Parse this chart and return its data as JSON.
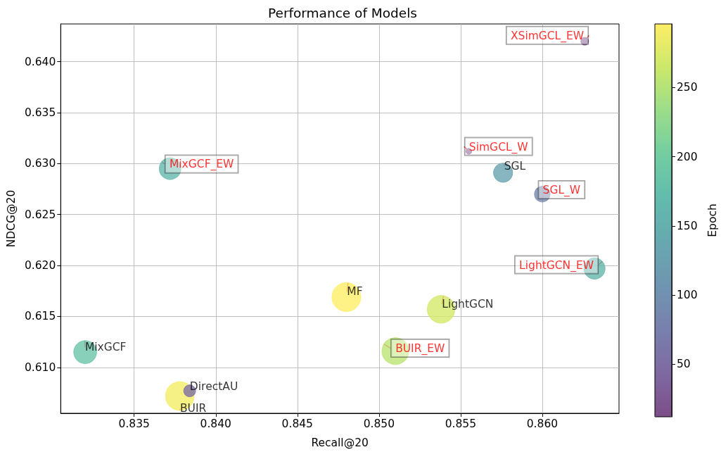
{
  "chart_data": {
    "type": "bubble",
    "title": "Performance of Models",
    "xlabel": "Recall@20",
    "ylabel": "NDCG@20",
    "clabel": "Epoch",
    "xlim": [
      0.8305,
      0.8647
    ],
    "xticks": [
      0.835,
      {
        "value": 0.84,
        "label": "0.840"
      },
      0.845,
      {
        "value": 0.85,
        "label": "0.850"
      },
      0.855,
      {
        "value": 0.86,
        "label": "0.860"
      }
    ],
    "ylim": [
      0.6055,
      0.6437
    ],
    "yticks": [
      {
        "value": 0.61,
        "label": "0.610"
      },
      0.615,
      {
        "value": 0.62,
        "label": "0.620"
      },
      0.625,
      {
        "value": 0.63,
        "label": "0.630"
      },
      0.635,
      {
        "value": 0.64,
        "label": "0.640"
      }
    ],
    "clim": [
      12,
      296
    ],
    "cticks": [
      50,
      100,
      150,
      200,
      250
    ],
    "grid": true,
    "marker": "circle",
    "series": [
      {
        "x": [
          0.848,
          0.8378,
          0.8538,
          0.832,
          0.8576,
          0.8384
        ],
        "values": [
          0.6169,
          0.6072,
          0.6157,
          0.6115,
          0.6291,
          0.6077
        ],
        "sizes": [
          1,
          0.98,
          0.91,
          0.63,
          0.44,
          0.17
        ],
        "cvalues": [
          296,
          290,
          270,
          185,
          130,
          50
        ],
        "colors": [
          "#feee66",
          "#f4ed67",
          "#d4e96a",
          "#6ac4a7",
          "#69a3b0",
          "#7e6da3"
        ]
      },
      {
        "x": [
          0.851,
          0.8372,
          0.8632,
          0.86,
          0.8626,
          0.8555
        ],
        "values": [
          0.6116,
          0.6295,
          0.6197,
          0.627,
          0.642,
          0.6312
        ],
        "sizes": [
          0.86,
          0.56,
          0.54,
          0.29,
          0.07,
          0.04
        ],
        "cvalues": [
          255,
          165,
          160,
          85,
          20,
          12
        ],
        "colors": [
          "#bce574",
          "#63b8ad",
          "#64b5ae",
          "#7586ae",
          "#7d548e",
          "#7c4d87"
        ]
      }
    ],
    "annotations": [
      {
        "text": "MF",
        "x": 0.848,
        "y": 0.6169
      },
      {
        "text": "BUIR",
        "x": 0.8378,
        "y": 0.6072
      },
      {
        "text": "LightGCN",
        "x": 0.8538,
        "y": 0.6157
      },
      {
        "text": "MixGCF",
        "x": 0.832,
        "y": 0.6115
      },
      {
        "text": "SGL",
        "x": 0.8576,
        "y": 0.6291
      },
      {
        "text": "DirectAU",
        "x": 0.8384,
        "y": 0.6077
      },
      {
        "text": "BUIR_EW",
        "x": 0.851,
        "y": 0.6116
      },
      {
        "text": "MixGCF_EW",
        "x": 0.8372,
        "y": 0.6295
      },
      {
        "text": "LightGCN_EW",
        "x": 0.8632,
        "y": 0.6197
      },
      {
        "text": "SGL_W",
        "x": 0.86,
        "y": 0.627
      },
      {
        "text": "XSimGCL_EW",
        "x": 0.8626,
        "y": 0.642
      },
      {
        "text": "SimGCL_W",
        "x": 0.8555,
        "y": 0.6312
      }
    ]
  }
}
